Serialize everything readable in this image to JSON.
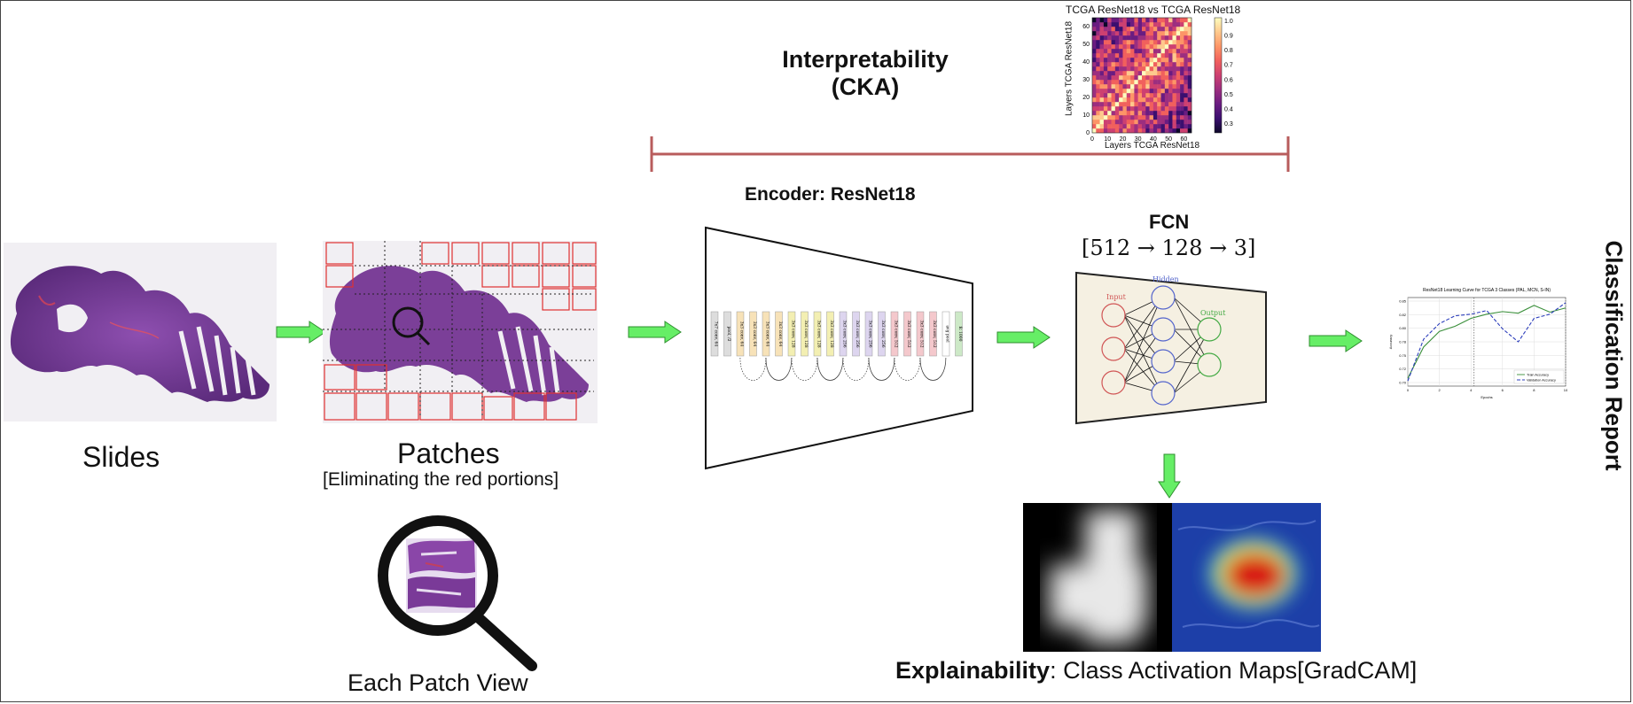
{
  "labels": {
    "slides": "Slides",
    "patches": "Patches",
    "patches_sub": "[Eliminating the red portions]",
    "patch_view": "Each Patch View",
    "interpretability_line1": "Interpretability",
    "interpretability_line2": "(CKA)",
    "encoder": "Encoder: ResNet18",
    "fcn": "FCN",
    "fcn_dims": "[512 → 128 → 3]",
    "explain_bold": "Explainability",
    "explain_rest": ": Class Activation Maps[GradCAM]",
    "classification_report": "Classification Report"
  },
  "cka_heatmap": {
    "title": "TCGA ResNet18 vs TCGA ResNet18",
    "xlabel": "Layers TCGA ResNet18",
    "ylabel": "Layers TCGA ResNet18",
    "x_ticks": [
      "0",
      "10",
      "20",
      "30",
      "40",
      "50",
      "60"
    ],
    "y_ticks": [
      "0",
      "10",
      "20",
      "30",
      "40",
      "50",
      "60"
    ],
    "colorbar_ticks": [
      "1.0",
      "0.9",
      "0.8",
      "0.7",
      "0.6",
      "0.5",
      "0.4",
      "0.3"
    ]
  },
  "fcn_diagram": {
    "input_label": "Input",
    "hidden_label": "Hidden",
    "output_label": "Output"
  },
  "resnet_blocks": [
    {
      "label": "7x7 conv, 64",
      "color": "#dddddd"
    },
    {
      "label": "pool, /2",
      "color": "#dddddd"
    },
    {
      "label": "3x3 conv, 64",
      "color": "#f7e2b8"
    },
    {
      "label": "3x3 conv, 64",
      "color": "#f7e2b8"
    },
    {
      "label": "3x3 conv, 64",
      "color": "#f7e2b8"
    },
    {
      "label": "3x3 conv, 64",
      "color": "#f7e2b8"
    },
    {
      "label": "3x3 conv, 128",
      "color": "#f3efb2"
    },
    {
      "label": "3x3 conv, 128",
      "color": "#f3efb2"
    },
    {
      "label": "3x3 conv, 128",
      "color": "#f3efb2"
    },
    {
      "label": "3x3 conv, 128",
      "color": "#f3efb2"
    },
    {
      "label": "3x3 conv, 256",
      "color": "#ddd5ef"
    },
    {
      "label": "3x3 conv, 256",
      "color": "#ddd5ef"
    },
    {
      "label": "3x3 conv, 256",
      "color": "#ddd5ef"
    },
    {
      "label": "3x3 conv, 256",
      "color": "#ddd5ef"
    },
    {
      "label": "3x3 conv, 512",
      "color": "#f4c8cc"
    },
    {
      "label": "3x3 conv, 512",
      "color": "#f4c8cc"
    },
    {
      "label": "3x3 conv, 512",
      "color": "#f4c8cc"
    },
    {
      "label": "3x3 conv, 512",
      "color": "#f4c8cc"
    },
    {
      "label": "avg pool",
      "color": "#ffffff"
    },
    {
      "label": "fc 1000",
      "color": "#cde9c7"
    }
  ],
  "learning_curve": {
    "type": "line",
    "title": "ResNet18 Learning Curve for TCGA 3 Classes (PAL, MCN, S-IN)",
    "xlabel": "Epochs",
    "ylabel": "Accuracy",
    "x": [
      0,
      1,
      2,
      3,
      4,
      5,
      6,
      7,
      8,
      9,
      10
    ],
    "ylim": [
      0.69,
      0.86
    ],
    "y_ticks": [
      "0.85",
      "0.82",
      "0.80",
      "0.78",
      "0.75",
      "0.72",
      "0.70"
    ],
    "x_ticks": [
      "0",
      "2",
      "4",
      "6",
      "8",
      "10"
    ],
    "series": [
      {
        "name": "Train Accuracy",
        "color": "#3a8f3a",
        "dash": "",
        "values": [
          0.705,
          0.765,
          0.795,
          0.805,
          0.82,
          0.828,
          0.833,
          0.83,
          0.845,
          0.832,
          0.84
        ]
      },
      {
        "name": "Validation Accuracy",
        "color": "#2b3dbb",
        "dash": "4,2",
        "values": [
          0.7,
          0.78,
          0.81,
          0.825,
          0.828,
          0.835,
          0.8,
          0.775,
          0.82,
          0.828,
          0.85
        ]
      }
    ],
    "legend_position": "lower-right"
  },
  "colors": {
    "arrow_fill": "#66ee66",
    "arrow_stroke": "#2f8f2f",
    "bracket": "#b85c5c",
    "patch_grid": "#e03030",
    "tissue": "#7b3f98",
    "fcn_bg": "#f5f0e2"
  }
}
